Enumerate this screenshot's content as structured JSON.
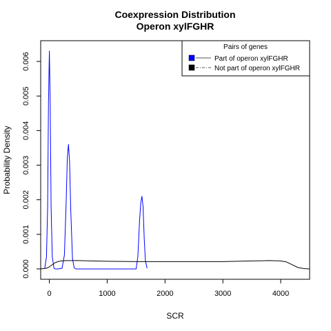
{
  "chart_data": {
    "type": "line",
    "title": "Coexpression Distribution",
    "subtitle": "Operon xylFGHR",
    "xlabel": "SCR",
    "ylabel": "Probability Density",
    "xlim": [
      -150,
      4500
    ],
    "ylim": [
      -0.0003,
      0.0066
    ],
    "x_ticks": [
      0,
      1000,
      2000,
      3000,
      4000
    ],
    "x_tick_labels": [
      "0",
      "1000",
      "2000",
      "3000",
      "4000"
    ],
    "y_ticks": [
      0,
      0.001,
      0.002,
      0.003,
      0.004,
      0.005,
      0.006
    ],
    "y_tick_labels": [
      "0.000",
      "0.001",
      "0.002",
      "0.003",
      "0.004",
      "0.005",
      "0.006"
    ],
    "grid": false,
    "legend": {
      "title": "Pairs of genes",
      "position": "top-right",
      "entries": [
        "Part of operon xylFGHR",
        "Not part of operon xylFGHR"
      ]
    },
    "series": [
      {
        "color": "#0000ff",
        "line_style": "solid",
        "x": [
          -80,
          -50,
          -30,
          -15,
          0,
          15,
          30,
          50,
          80,
          100,
          150,
          220,
          260,
          290,
          310,
          330,
          350,
          370,
          400,
          430,
          460,
          800,
          1200,
          1500,
          1530,
          1560,
          1580,
          1600,
          1620,
          1640,
          1660,
          1690
        ],
        "y": [
          2e-05,
          0.00035,
          0.0018,
          0.0048,
          0.0063,
          0.0048,
          0.0018,
          0.00035,
          2e-05,
          0.0,
          0.0,
          2e-05,
          0.0004,
          0.0019,
          0.0032,
          0.0036,
          0.0031,
          0.0017,
          0.0003,
          3e-05,
          0.0,
          0.0,
          0.0,
          0.0,
          0.00035,
          0.0014,
          0.0019,
          0.0021,
          0.0018,
          0.0009,
          0.00025,
          2e-05
        ]
      },
      {
        "color": "#000000",
        "line_style": "solid",
        "x": [
          -150,
          -50,
          0,
          50,
          100,
          150,
          200,
          300,
          500,
          1000,
          1500,
          2000,
          2500,
          3000,
          3500,
          3800,
          4000,
          4100,
          4200,
          4300,
          4400,
          4500
        ],
        "y": [
          0.0,
          2e-05,
          6e-05,
          0.00012,
          0.00018,
          0.00021,
          0.00023,
          0.00024,
          0.00024,
          0.00022,
          0.00021,
          0.00021,
          0.00021,
          0.00021,
          0.00023,
          0.00024,
          0.00023,
          0.0002,
          0.00012,
          4e-05,
          1e-05,
          0.0
        ]
      }
    ]
  }
}
